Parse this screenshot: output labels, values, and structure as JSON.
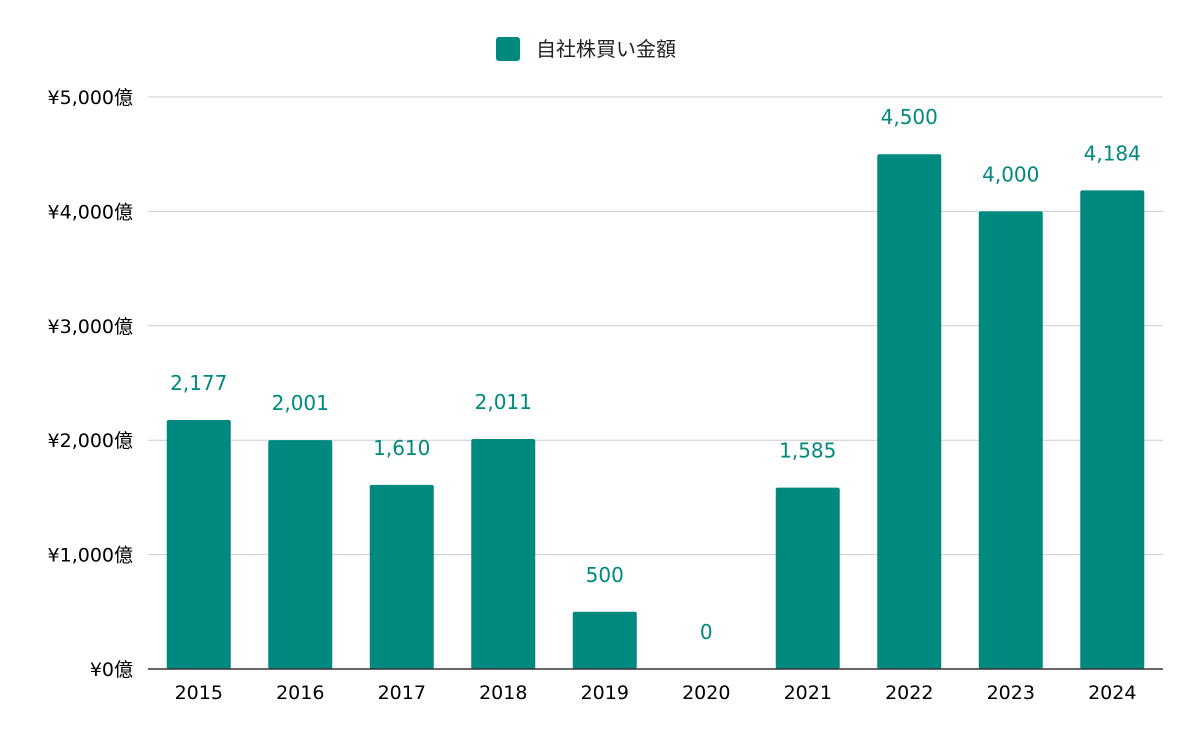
{
  "chart_data": {
    "type": "bar",
    "categories": [
      "2015",
      "2016",
      "2017",
      "2018",
      "2019",
      "2020",
      "2021",
      "2022",
      "2023",
      "2024"
    ],
    "series": [
      {
        "name": "自社株買い金額",
        "values": [
          2177,
          2001,
          1610,
          2011,
          500,
          0,
          1585,
          4500,
          4000,
          4184
        ],
        "data_labels": [
          "2,177",
          "2,001",
          "1,610",
          "2,011",
          "500",
          "0",
          "1,585",
          "4,500",
          "4,000",
          "4,184"
        ],
        "color": "#00897f"
      }
    ],
    "ylim": [
      0,
      5000
    ],
    "yticks": [
      0,
      1000,
      2000,
      3000,
      4000,
      5000
    ],
    "ytick_labels": [
      "¥0億",
      "¥1,000億",
      "¥2,000億",
      "¥3,000億",
      "¥4,000億",
      "¥5,000億"
    ],
    "xlabel": "",
    "ylabel": "",
    "title": "",
    "legend_position": "top",
    "grid": true,
    "colors": {
      "bar": "#00897f",
      "data_label": "#00897f",
      "grid": "#cccccc",
      "axis": "#333333",
      "text": "#000000"
    }
  }
}
